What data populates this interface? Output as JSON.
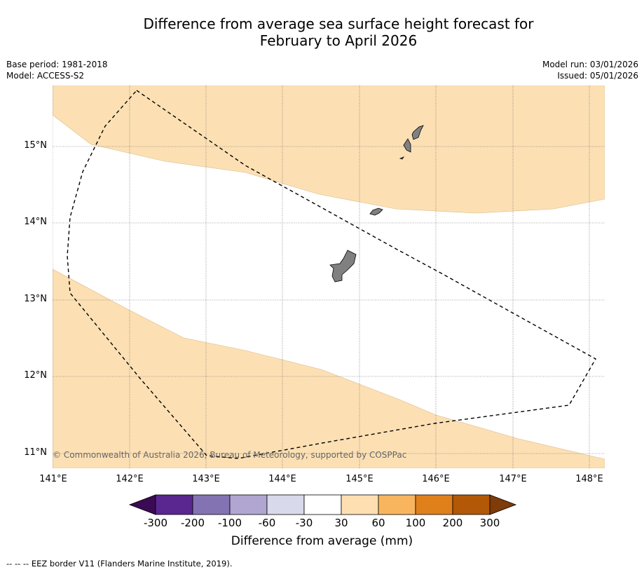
{
  "title_line1": "Difference from average sea surface height forecast for",
  "title_line2": "February to April 2026",
  "meta": {
    "base_period": "Base period: 1981-2018",
    "model": "Model: ACCESS-S2",
    "model_run": "Model run: 03/01/2026",
    "issued": "Issued: 05/01/2026"
  },
  "lat_labels": [
    "15°N",
    "14°N",
    "13°N",
    "12°N",
    "11°N"
  ],
  "lon_labels": [
    "141°E",
    "142°E",
    "143°E",
    "144°E",
    "145°E",
    "146°E",
    "147°E",
    "148°E"
  ],
  "copyright": "© Commonwealth of Australia 2026, Bureau of Meteorology, supported by COSPPac",
  "colorbar": {
    "ticks": [
      "-300",
      "-200",
      "-100",
      "-60",
      "-30",
      "30",
      "60",
      "100",
      "200",
      "300"
    ],
    "colors": [
      "#5a2690",
      "#8373b2",
      "#b0a6d1",
      "#d9d9ec",
      "#ffffff",
      "#fddfb2",
      "#f9b55e",
      "#e0801a",
      "#b35806"
    ],
    "under_color": "#3b0a54",
    "over_color": "#7f3b08",
    "label": "Difference from average (mm)"
  },
  "footnote": "--  --  -- EEZ border V11 (Flanders Marine Institute, 2019).",
  "colors": {
    "anomaly_fill": "#fce0b4"
  }
}
